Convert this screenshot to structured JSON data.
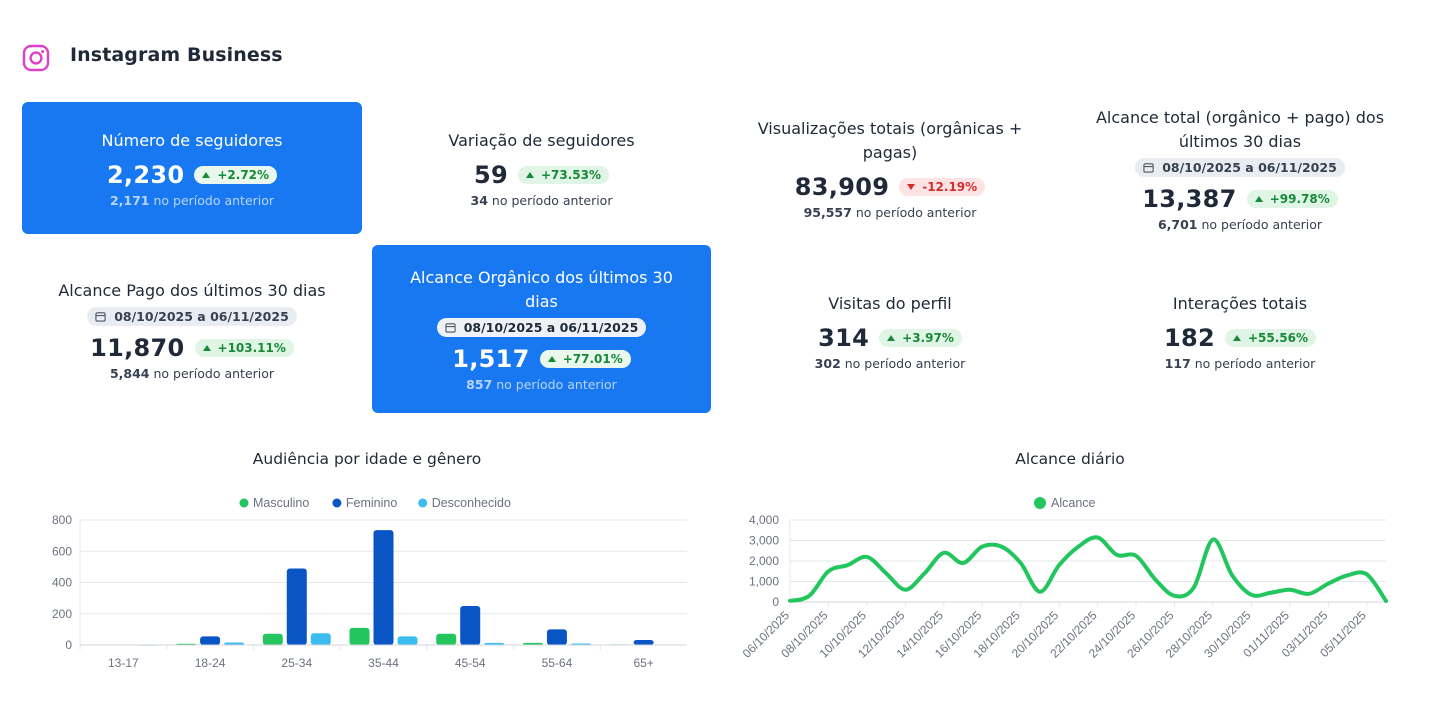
{
  "header": {
    "title": "Instagram Business",
    "icon": "instagram-icon",
    "icon_color": "#e040c8"
  },
  "cards": {
    "followers": {
      "title": "Número de seguidores",
      "value": "2,230",
      "change": "+2.72%",
      "prev_value": "2,171",
      "prev_label": "no período anterior"
    },
    "followers_variation": {
      "title": "Variação de seguidores",
      "value": "59",
      "change": "+73.53%",
      "prev_value": "34",
      "prev_label": "no período anterior"
    },
    "total_views": {
      "title": "Visualizações totais (orgânicas + pagas)",
      "value": "83,909",
      "change": "-12.19%",
      "prev_value": "95,557",
      "prev_label": "no período anterior"
    },
    "total_reach": {
      "title": "Alcance total (orgânico + pago) dos últimos 30 dias",
      "range": "08/10/2025 a 06/11/2025",
      "value": "13,387",
      "change": "+99.78%",
      "prev_value": "6,701",
      "prev_label": "no período anterior"
    },
    "paid_reach": {
      "title": "Alcance Pago dos últimos 30 dias",
      "range": "08/10/2025 a 06/11/2025",
      "value": "11,870",
      "change": "+103.11%",
      "prev_value": "5,844",
      "prev_label": "no período anterior"
    },
    "organic_reach": {
      "title": "Alcance Orgânico dos últimos 30 dias",
      "range": "08/10/2025 a 06/11/2025",
      "value": "1,517",
      "change": "+77.01%",
      "prev_value": "857",
      "prev_label": "no período anterior"
    },
    "profile_visits": {
      "title": "Visitas do perfil",
      "value": "314",
      "change": "+3.97%",
      "prev_value": "302",
      "prev_label": "no período anterior"
    },
    "interactions": {
      "title": "Interações totais",
      "value": "182",
      "change": "+55.56%",
      "prev_value": "117",
      "prev_label": "no período anterior"
    }
  },
  "colors": {
    "card_blue": "#1778f2",
    "up": "#178a37",
    "down": "#d32f2f",
    "masculino": "#22c55e",
    "feminino": "#0a55c4",
    "desconhecido": "#3dbcf0",
    "alcance": "#22c55e"
  },
  "chart_data": [
    {
      "type": "bar",
      "title": "Audiência por idade e gênero",
      "categories": [
        "13-17",
        "18-24",
        "25-34",
        "35-44",
        "45-54",
        "55-64",
        "65+"
      ],
      "series": [
        {
          "name": "Masculino",
          "values": [
            2,
            8,
            72,
            110,
            72,
            14,
            4
          ]
        },
        {
          "name": "Feminino",
          "values": [
            3,
            55,
            490,
            735,
            250,
            100,
            32
          ]
        },
        {
          "name": "Desconhecido",
          "values": [
            1,
            16,
            75,
            55,
            14,
            10,
            2
          ]
        }
      ],
      "ylim": [
        0,
        800
      ],
      "yticks": [
        "0",
        "200",
        "400",
        "600",
        "800"
      ],
      "legend": "top"
    },
    {
      "type": "line",
      "title": "Alcance diário",
      "x": [
        "06/10/2025",
        "07/10/2025",
        "08/10/2025",
        "09/10/2025",
        "10/10/2025",
        "11/10/2025",
        "12/10/2025",
        "13/10/2025",
        "14/10/2025",
        "15/10/2025",
        "16/10/2025",
        "17/10/2025",
        "18/10/2025",
        "19/10/2025",
        "20/10/2025",
        "21/10/2025",
        "22/10/2025",
        "23/10/2025",
        "24/10/2025",
        "25/10/2025",
        "26/10/2025",
        "27/10/2025",
        "28/10/2025",
        "29/10/2025",
        "30/10/2025",
        "31/10/2025",
        "01/11/2025",
        "02/11/2025",
        "03/11/2025",
        "04/11/2025",
        "05/11/2025",
        "06/11/2025"
      ],
      "xtick_labels": [
        "06/10/2025",
        "08/10/2025",
        "10/10/2025",
        "12/10/2025",
        "14/10/2025",
        "16/10/2025",
        "18/10/2025",
        "20/10/2025",
        "22/10/2025",
        "24/10/2025",
        "26/10/2025",
        "28/10/2025",
        "30/10/2025",
        "01/11/2025",
        "03/11/2025",
        "05/11/2025"
      ],
      "series": [
        {
          "name": "Alcance",
          "values": [
            50,
            300,
            1500,
            1800,
            2200,
            1400,
            600,
            1400,
            2400,
            1900,
            2700,
            2700,
            1900,
            500,
            1800,
            2700,
            3150,
            2300,
            2250,
            1100,
            300,
            700,
            3050,
            1300,
            350,
            450,
            600,
            400,
            900,
            1300,
            1350,
            50
          ]
        }
      ],
      "ylim": [
        0,
        4000
      ],
      "yticks": [
        "0",
        "1,000",
        "2,000",
        "3,000",
        "4,000"
      ],
      "legend": "top"
    }
  ]
}
